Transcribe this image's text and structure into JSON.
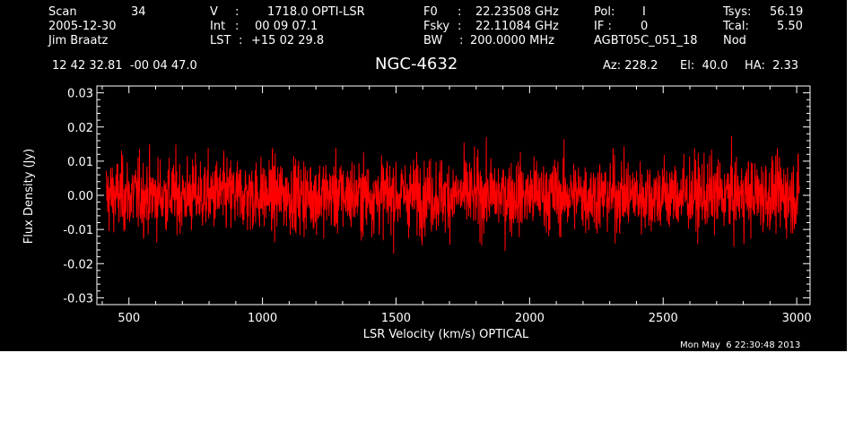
{
  "header": {
    "col1": {
      "scan_label": "Scan",
      "scan_value": "34",
      "date": "2005-12-30",
      "observer": "Jim Braatz"
    },
    "col2": {
      "v_label": "V",
      "v_value": "1718.0 OPTI-LSR",
      "int_label": "Int",
      "int_value": "00 09 07.1",
      "lst_label": "LST",
      "lst_value": "+15 02 29.8"
    },
    "col3": {
      "f0_label": "F0",
      "f0_value": "22.23508 GHz",
      "fsky_label": "Fsky",
      "fsky_value": "22.11084 GHz",
      "bw_label": "BW",
      "bw_value": "200.0000 MHz"
    },
    "col4": {
      "pol_label": "Pol:",
      "pol_value": "I",
      "if_label": "IF :",
      "if_value": "0",
      "project": "AGBT05C_051_18"
    },
    "col5": {
      "tsys_label": "Tsys:",
      "tsys_value": "56.19",
      "tcal_label": "Tcal:",
      "tcal_value": "5.50",
      "mode": "Nod"
    },
    "coords": "12 42 32.81  -00 04 47.0",
    "source": "NGC-4632",
    "az": "Az: 228.2",
    "el": "El:  40.0",
    "ha": "HA:  2.33"
  },
  "timestamp": "Mon May  6 22:30:48 2013",
  "colors": {
    "background": "#000000",
    "axes": "#ffffff",
    "series": "#ff0000"
  },
  "chart_data": {
    "type": "line",
    "xlabel": "LSR Velocity (km/s) OPTICAL",
    "ylabel": "Flux Density (Jy)",
    "xlim": [
      380,
      3050
    ],
    "ylim": [
      -0.032,
      0.032
    ],
    "xticks": [
      500,
      1000,
      1500,
      2000,
      2500,
      3000
    ],
    "yticks": [
      -0.03,
      -0.02,
      -0.01,
      0.0,
      0.01,
      0.02,
      0.03
    ],
    "ytick_labels": [
      "-0.03",
      "-0.02",
      "-0.01",
      "0.00",
      "0.01",
      "0.02",
      "0.03"
    ],
    "grid": false,
    "series": [
      {
        "x_start": 415,
        "x_end": 3010,
        "noise_rms": 0.0075,
        "mean": 0.0
      }
    ]
  }
}
